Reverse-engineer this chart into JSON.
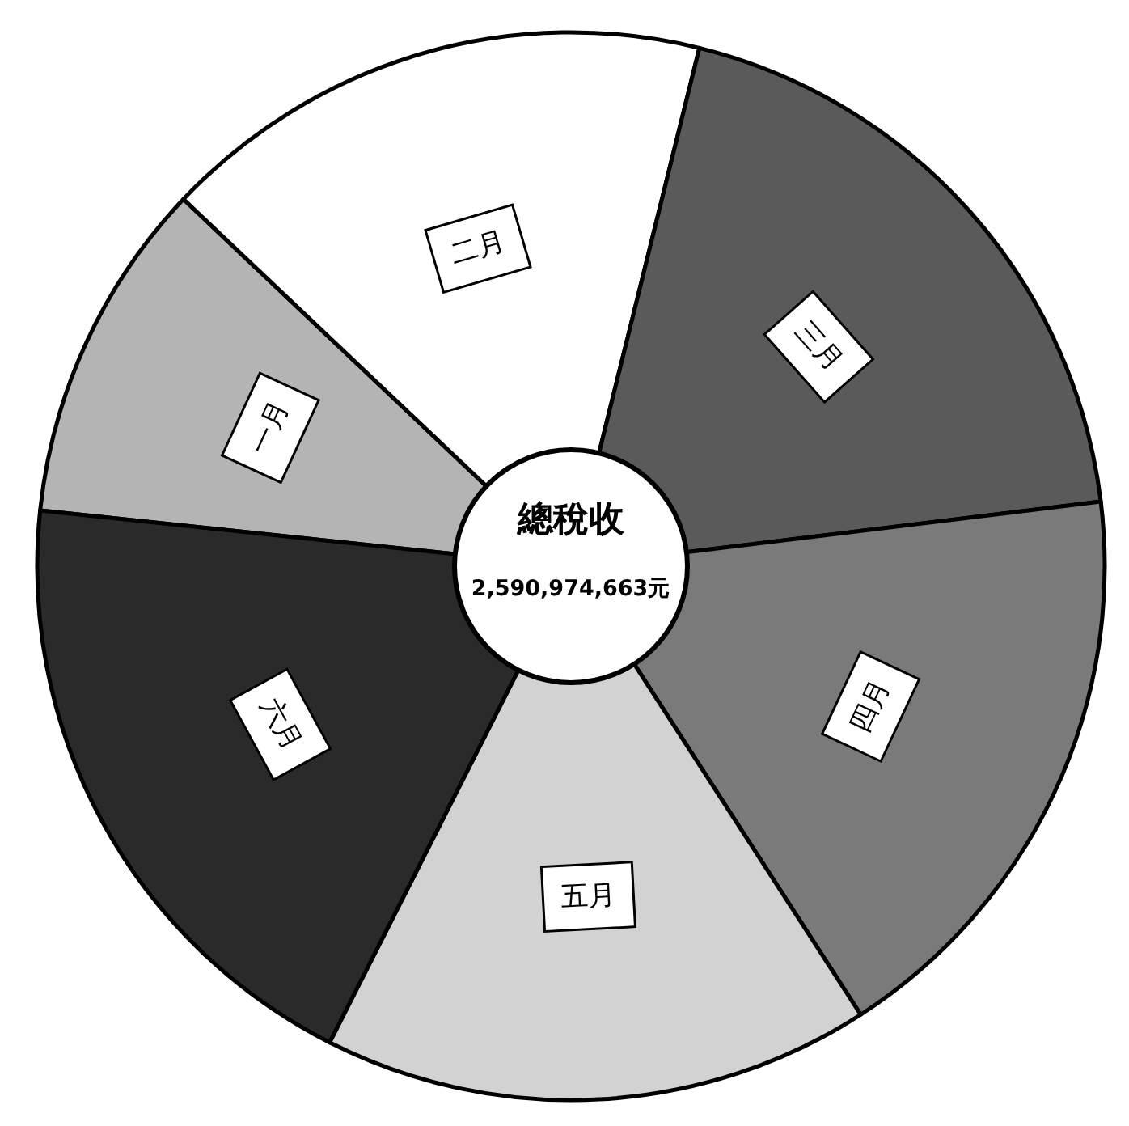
{
  "chart_data": {
    "type": "donut",
    "title": "總稅收",
    "annotations": [
      "2,590,974,663元"
    ],
    "categories": [
      "一月",
      "二月",
      "三月",
      "四月",
      "五月",
      "六月"
    ],
    "values": [
      10.4,
      16.8,
      19.2,
      17.8,
      16.6,
      19.2
    ],
    "colors": [
      "#b4b4b4",
      "#ffffff",
      "#5a5a5a",
      "#7a7a7a",
      "#d2d2d2",
      "#2a2a2a"
    ]
  }
}
